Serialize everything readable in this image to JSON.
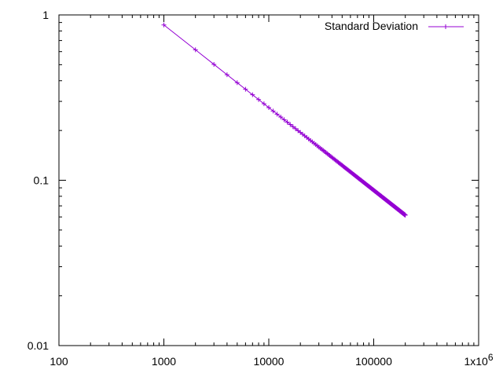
{
  "chart_data": {
    "type": "line",
    "title": "",
    "xlabel": "",
    "ylabel": "",
    "x_scale": "log",
    "y_scale": "log",
    "xlim": [
      100,
      1000000
    ],
    "ylim": [
      0.01,
      1
    ],
    "grid": false,
    "legend_position": "top-right",
    "x_ticks": [
      {
        "value": 100,
        "label": "100"
      },
      {
        "value": 1000,
        "label": "1000"
      },
      {
        "value": 10000,
        "label": "10000"
      },
      {
        "value": 100000,
        "label": "100000"
      },
      {
        "value": 1000000,
        "label": "1x10",
        "exponent": "6"
      }
    ],
    "y_ticks": [
      {
        "value": 0.01,
        "label": "0.01"
      },
      {
        "value": 0.1,
        "label": "0.1"
      },
      {
        "value": 1,
        "label": "1"
      }
    ],
    "series": [
      {
        "name": "Standard Deviation",
        "color": "#9400d3",
        "marker": "plus",
        "x_start": 1000,
        "x_step": 1000,
        "x_end": 200000,
        "y_at_start": 0.87,
        "y_at_end": 0.06,
        "relation": "y proportional to x^-0.5"
      }
    ]
  }
}
